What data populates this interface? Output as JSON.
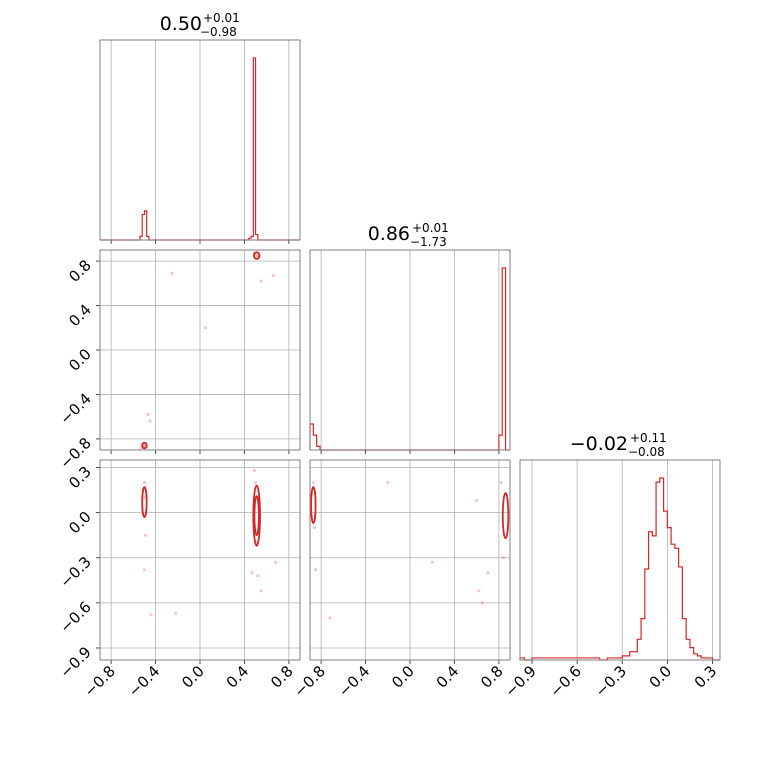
{
  "colors": {
    "series": "#d62728",
    "grid": "#b0b0b0",
    "frame": "#808080"
  },
  "chart_data": {
    "type": "corner",
    "grid": true,
    "params": [
      {
        "median": 0.5,
        "median_text": "0.50",
        "plus_text": "+0.01",
        "minus_text": "−0.98",
        "range": [
          -0.9,
          0.9
        ]
      },
      {
        "median": 0.86,
        "median_text": "0.86",
        "plus_text": "+0.01",
        "minus_text": "−1.73",
        "range": [
          -0.9,
          0.9
        ]
      },
      {
        "median": -0.02,
        "median_text": "−0.02",
        "plus_text": "+0.11",
        "minus_text": "−0.08",
        "range": [
          -0.98,
          0.35
        ]
      }
    ],
    "ticks": {
      "p0": [
        -0.8,
        -0.4,
        0.0,
        0.4,
        0.8
      ],
      "p0_labels": [
        "−0.8",
        "−0.4",
        "0.0",
        "0.4",
        "0.8"
      ],
      "p1": [
        -0.8,
        -0.4,
        0.0,
        0.4,
        0.8
      ],
      "p1_labels": [
        "−0.8",
        "−0.4",
        "0.0",
        "0.4",
        "0.8"
      ],
      "p2": [
        -0.9,
        -0.6,
        -0.3,
        0.0,
        0.3
      ],
      "p2_labels": [
        "−0.9",
        "−0.6",
        "−0.3",
        "0.0",
        "0.3"
      ]
    },
    "hist_p0": {
      "edges": [
        -0.9,
        -0.54,
        -0.52,
        -0.5,
        -0.48,
        -0.46,
        0.44,
        0.46,
        0.48,
        0.5,
        0.52,
        0.54,
        0.9
      ],
      "values": [
        0,
        0.02,
        0.14,
        0.16,
        0.02,
        0,
        0.01,
        0.02,
        1.0,
        0.03,
        0,
        0
      ]
    },
    "hist_p1": {
      "edges": [
        -0.9,
        -0.87,
        -0.84,
        -0.81,
        0.8,
        0.83,
        0.86,
        0.9
      ],
      "values": [
        0.14,
        0.08,
        0.02,
        0,
        0.08,
        0.98,
        0
      ],
      "note_visible_axis_max": 0.88
    },
    "hist_p2": {
      "edges": [
        -0.98,
        -0.95,
        -0.9,
        -0.8,
        -0.7,
        -0.6,
        -0.5,
        -0.45,
        -0.4,
        -0.35,
        -0.3,
        -0.25,
        -0.2,
        -0.175,
        -0.15,
        -0.125,
        -0.1,
        -0.075,
        -0.05,
        -0.025,
        0.0,
        0.025,
        0.05,
        0.075,
        0.1,
        0.125,
        0.15,
        0.175,
        0.2,
        0.225,
        0.25,
        0.3,
        0.35
      ],
      "values": [
        0.01,
        0,
        0.01,
        0.01,
        0.01,
        0.01,
        0.01,
        0,
        0.01,
        0.01,
        0.02,
        0.04,
        0.1,
        0.2,
        0.44,
        0.62,
        0.6,
        0.86,
        0.88,
        0.72,
        0.64,
        0.56,
        0.54,
        0.45,
        0.2,
        0.1,
        0.06,
        0.03,
        0.02,
        0.01,
        0.01,
        0
      ]
    },
    "scatter_p0_p1": [
      {
        "x": -0.52,
        "y": -0.85
      },
      {
        "x": -0.5,
        "y": -0.86
      },
      {
        "x": -0.51,
        "y": -0.87
      },
      {
        "x": -0.49,
        "y": -0.84
      },
      {
        "x": -0.53,
        "y": -0.88
      },
      {
        "x": -0.48,
        "y": -0.87
      },
      {
        "x": -0.47,
        "y": -0.58
      },
      {
        "x": 0.5,
        "y": 0.86
      },
      {
        "x": 0.52,
        "y": 0.85
      },
      {
        "x": 0.53,
        "y": 0.84
      },
      {
        "x": 0.49,
        "y": 0.87
      },
      {
        "x": 0.51,
        "y": 0.83
      },
      {
        "x": 0.55,
        "y": 0.62
      },
      {
        "x": 0.66,
        "y": 0.67
      },
      {
        "x": 0.05,
        "y": 0.2
      },
      {
        "x": -0.25,
        "y": 0.69
      },
      {
        "x": -0.45,
        "y": -0.64
      }
    ],
    "contours_p0_p1": [
      {
        "cx": -0.5,
        "cy": -0.86,
        "rx": 0.02,
        "ry": 0.025
      },
      {
        "cx": 0.51,
        "cy": 0.85,
        "rx": 0.025,
        "ry": 0.03
      }
    ],
    "scatter_p0_p2": [
      {
        "x": -0.5,
        "y": 0.1
      },
      {
        "x": -0.5,
        "y": 0.2
      },
      {
        "x": -0.49,
        "y": -0.15
      },
      {
        "x": -0.5,
        "y": -0.38
      },
      {
        "x": -0.44,
        "y": -0.68
      },
      {
        "x": -0.22,
        "y": -0.67
      },
      {
        "x": 0.5,
        "y": 0.2
      },
      {
        "x": 0.51,
        "y": -0.2
      },
      {
        "x": 0.49,
        "y": 0.28
      },
      {
        "x": 0.52,
        "y": -0.42
      },
      {
        "x": 0.55,
        "y": -0.52
      },
      {
        "x": 0.47,
        "y": -0.4
      },
      {
        "x": 0.68,
        "y": -0.33
      },
      {
        "x": 0.53,
        "y": 0.1
      },
      {
        "x": 0.48,
        "y": -0.05
      }
    ],
    "contours_p0_p2": [
      {
        "cx": -0.5,
        "cy": 0.07,
        "rx": 0.02,
        "ry": 0.1
      },
      {
        "cx": 0.51,
        "cy": -0.02,
        "rx": 0.02,
        "ry": 0.13
      },
      {
        "cx": 0.51,
        "cy": -0.02,
        "rx": 0.03,
        "ry": 0.2
      }
    ],
    "scatter_p1_p2": [
      {
        "x": -0.87,
        "y": 0.2
      },
      {
        "x": -0.86,
        "y": -0.1
      },
      {
        "x": -0.85,
        "y": -0.38
      },
      {
        "x": -0.72,
        "y": -0.7
      },
      {
        "x": -0.2,
        "y": 0.2
      },
      {
        "x": 0.2,
        "y": -0.33
      },
      {
        "x": 0.62,
        "y": -0.52
      },
      {
        "x": 0.65,
        "y": -0.6
      },
      {
        "x": 0.7,
        "y": -0.4
      },
      {
        "x": 0.82,
        "y": 0.2
      },
      {
        "x": 0.84,
        "y": -0.3
      },
      {
        "x": 0.6,
        "y": 0.08
      }
    ],
    "contours_p1_p2": [
      {
        "cx": -0.87,
        "cy": 0.05,
        "rx": 0.02,
        "ry": 0.12
      },
      {
        "cx": 0.86,
        "cy": -0.02,
        "rx": 0.025,
        "ry": 0.15
      }
    ]
  }
}
